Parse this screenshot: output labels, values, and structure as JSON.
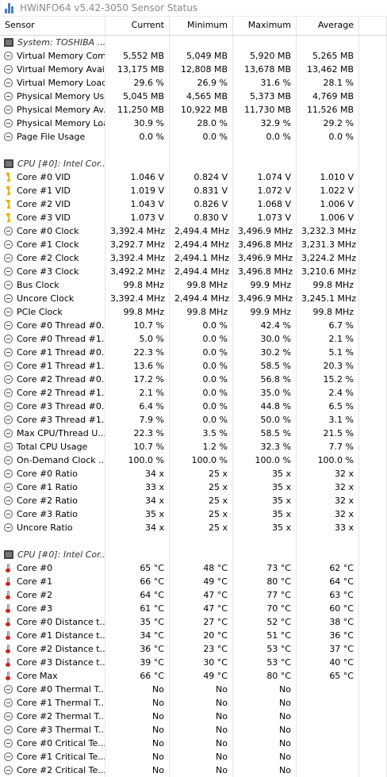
{
  "window": {
    "title": "HWiNFO64 v5.42-3050 Sensor Status"
  },
  "columns": {
    "sensor": "Sensor",
    "current": "Current",
    "minimum": "Minimum",
    "maximum": "Maximum",
    "average": "Average"
  },
  "rows": [
    {
      "type": "group",
      "icon": "chip-icon",
      "label": "System: TOSHIBA ...",
      "cur": "",
      "min": "",
      "max": "",
      "avg": ""
    },
    {
      "type": "sensor",
      "icon": "gauge-icon",
      "label": "Virtual Memory Com...",
      "cur": "5,552 MB",
      "min": "5,049 MB",
      "max": "5,920 MB",
      "avg": "5,265 MB"
    },
    {
      "type": "sensor",
      "icon": "gauge-icon",
      "label": "Virtual Memory Avai...",
      "cur": "13,175 MB",
      "min": "12,808 MB",
      "max": "13,678 MB",
      "avg": "13,462 MB"
    },
    {
      "type": "sensor",
      "icon": "gauge-icon",
      "label": "Virtual Memory Load",
      "cur": "29.6 %",
      "min": "26.9 %",
      "max": "31.6 %",
      "avg": "28.1 %"
    },
    {
      "type": "sensor",
      "icon": "gauge-icon",
      "label": "Physical Memory Used",
      "cur": "5,045 MB",
      "min": "4,565 MB",
      "max": "5,373 MB",
      "avg": "4,769 MB"
    },
    {
      "type": "sensor",
      "icon": "gauge-icon",
      "label": "Physical Memory Av...",
      "cur": "11,250 MB",
      "min": "10,922 MB",
      "max": "11,730 MB",
      "avg": "11,526 MB"
    },
    {
      "type": "sensor",
      "icon": "gauge-icon",
      "label": "Physical Memory Load",
      "cur": "30.9 %",
      "min": "28.0 %",
      "max": "32.9 %",
      "avg": "29.2 %"
    },
    {
      "type": "sensor",
      "icon": "gauge-icon",
      "label": "Page File Usage",
      "cur": "0.0 %",
      "min": "0.0 %",
      "max": "0.0 %",
      "avg": "0.0 %"
    },
    {
      "type": "blank",
      "icon": "",
      "label": "",
      "cur": "",
      "min": "",
      "max": "",
      "avg": ""
    },
    {
      "type": "group",
      "icon": "chip-icon",
      "label": "CPU [#0]: Intel Cor...",
      "cur": "",
      "min": "",
      "max": "",
      "avg": ""
    },
    {
      "type": "sensor",
      "icon": "bolt-icon",
      "label": "Core #0 VID",
      "cur": "1.046 V",
      "min": "0.824 V",
      "max": "1.074 V",
      "avg": "1.010 V"
    },
    {
      "type": "sensor",
      "icon": "bolt-icon",
      "label": "Core #1 VID",
      "cur": "1.019 V",
      "min": "0.831 V",
      "max": "1.072 V",
      "avg": "1.022 V"
    },
    {
      "type": "sensor",
      "icon": "bolt-icon",
      "label": "Core #2 VID",
      "cur": "1.043 V",
      "min": "0.826 V",
      "max": "1.068 V",
      "avg": "1.006 V"
    },
    {
      "type": "sensor",
      "icon": "bolt-icon",
      "label": "Core #3 VID",
      "cur": "1.073 V",
      "min": "0.830 V",
      "max": "1.073 V",
      "avg": "1.006 V"
    },
    {
      "type": "sensor",
      "icon": "gauge-icon",
      "label": "Core #0 Clock",
      "cur": "3,392.4 MHz",
      "min": "2,494.4 MHz",
      "max": "3,496.9 MHz",
      "avg": "3,232.3 MHz"
    },
    {
      "type": "sensor",
      "icon": "gauge-icon",
      "label": "Core #1 Clock",
      "cur": "3,292.7 MHz",
      "min": "2,494.4 MHz",
      "max": "3,496.8 MHz",
      "avg": "3,231.3 MHz"
    },
    {
      "type": "sensor",
      "icon": "gauge-icon",
      "label": "Core #2 Clock",
      "cur": "3,392.4 MHz",
      "min": "2,494.1 MHz",
      "max": "3,496.9 MHz",
      "avg": "3,224.2 MHz"
    },
    {
      "type": "sensor",
      "icon": "gauge-icon",
      "label": "Core #3 Clock",
      "cur": "3,492.2 MHz",
      "min": "2,494.4 MHz",
      "max": "3,496.8 MHz",
      "avg": "3,210.6 MHz"
    },
    {
      "type": "sensor",
      "icon": "gauge-icon",
      "label": "Bus Clock",
      "cur": "99.8 MHz",
      "min": "99.8 MHz",
      "max": "99.9 MHz",
      "avg": "99.8 MHz"
    },
    {
      "type": "sensor",
      "icon": "gauge-icon",
      "label": "Uncore Clock",
      "cur": "3,392.4 MHz",
      "min": "2,494.4 MHz",
      "max": "3,496.9 MHz",
      "avg": "3,245.1 MHz"
    },
    {
      "type": "sensor",
      "icon": "gauge-icon",
      "label": "PCIe Clock",
      "cur": "99.8 MHz",
      "min": "99.8 MHz",
      "max": "99.9 MHz",
      "avg": "99.8 MHz"
    },
    {
      "type": "sensor",
      "icon": "gauge-icon",
      "label": "Core #0 Thread #0...",
      "cur": "10.7 %",
      "min": "0.0 %",
      "max": "42.4 %",
      "avg": "6.7 %"
    },
    {
      "type": "sensor",
      "icon": "gauge-icon",
      "label": "Core #0 Thread #1...",
      "cur": "5.0 %",
      "min": "0.0 %",
      "max": "30.0 %",
      "avg": "2.1 %"
    },
    {
      "type": "sensor",
      "icon": "gauge-icon",
      "label": "Core #1 Thread #0...",
      "cur": "22.3 %",
      "min": "0.0 %",
      "max": "30.2 %",
      "avg": "5.1 %"
    },
    {
      "type": "sensor",
      "icon": "gauge-icon",
      "label": "Core #1 Thread #1...",
      "cur": "13.6 %",
      "min": "0.0 %",
      "max": "58.5 %",
      "avg": "20.3 %"
    },
    {
      "type": "sensor",
      "icon": "gauge-icon",
      "label": "Core #2 Thread #0...",
      "cur": "17.2 %",
      "min": "0.0 %",
      "max": "56.8 %",
      "avg": "15.2 %"
    },
    {
      "type": "sensor",
      "icon": "gauge-icon",
      "label": "Core #2 Thread #1...",
      "cur": "2.1 %",
      "min": "0.0 %",
      "max": "35.0 %",
      "avg": "2.4 %"
    },
    {
      "type": "sensor",
      "icon": "gauge-icon",
      "label": "Core #3 Thread #0...",
      "cur": "6.4 %",
      "min": "0.0 %",
      "max": "44.8 %",
      "avg": "6.5 %"
    },
    {
      "type": "sensor",
      "icon": "gauge-icon",
      "label": "Core #3 Thread #1...",
      "cur": "7.9 %",
      "min": "0.0 %",
      "max": "50.0 %",
      "avg": "3.1 %"
    },
    {
      "type": "sensor",
      "icon": "gauge-icon",
      "label": "Max CPU/Thread U...",
      "cur": "22.3 %",
      "min": "3.5 %",
      "max": "58.5 %",
      "avg": "21.5 %"
    },
    {
      "type": "sensor",
      "icon": "gauge-icon",
      "label": "Total CPU Usage",
      "cur": "10.7 %",
      "min": "1.2 %",
      "max": "32.3 %",
      "avg": "7.7 %"
    },
    {
      "type": "sensor",
      "icon": "gauge-icon",
      "label": "On-Demand Clock ...",
      "cur": "100.0 %",
      "min": "100.0 %",
      "max": "100.0 %",
      "avg": "100.0 %"
    },
    {
      "type": "sensor",
      "icon": "gauge-icon",
      "label": "Core #0 Ratio",
      "cur": "34 x",
      "min": "25 x",
      "max": "35 x",
      "avg": "32 x"
    },
    {
      "type": "sensor",
      "icon": "gauge-icon",
      "label": "Core #1 Ratio",
      "cur": "33 x",
      "min": "25 x",
      "max": "35 x",
      "avg": "32 x"
    },
    {
      "type": "sensor",
      "icon": "gauge-icon",
      "label": "Core #2 Ratio",
      "cur": "34 x",
      "min": "25 x",
      "max": "35 x",
      "avg": "32 x"
    },
    {
      "type": "sensor",
      "icon": "gauge-icon",
      "label": "Core #3 Ratio",
      "cur": "35 x",
      "min": "25 x",
      "max": "35 x",
      "avg": "32 x"
    },
    {
      "type": "sensor",
      "icon": "gauge-icon",
      "label": "Uncore Ratio",
      "cur": "34 x",
      "min": "25 x",
      "max": "35 x",
      "avg": "33 x"
    },
    {
      "type": "blank",
      "icon": "",
      "label": "",
      "cur": "",
      "min": "",
      "max": "",
      "avg": ""
    },
    {
      "type": "group",
      "icon": "chip-icon",
      "label": "CPU [#0]: Intel Cor...",
      "cur": "",
      "min": "",
      "max": "",
      "avg": ""
    },
    {
      "type": "sensor",
      "icon": "thermometer-icon",
      "label": "Core #0",
      "cur": "65 °C",
      "min": "48 °C",
      "max": "73 °C",
      "avg": "62 °C"
    },
    {
      "type": "sensor",
      "icon": "thermometer-icon",
      "label": "Core #1",
      "cur": "66 °C",
      "min": "49 °C",
      "max": "80 °C",
      "avg": "64 °C"
    },
    {
      "type": "sensor",
      "icon": "thermometer-icon",
      "label": "Core #2",
      "cur": "64 °C",
      "min": "47 °C",
      "max": "77 °C",
      "avg": "63 °C"
    },
    {
      "type": "sensor",
      "icon": "thermometer-icon",
      "label": "Core #3",
      "cur": "61 °C",
      "min": "47 °C",
      "max": "70 °C",
      "avg": "60 °C"
    },
    {
      "type": "sensor",
      "icon": "thermometer-icon",
      "label": "Core #0 Distance t...",
      "cur": "35 °C",
      "min": "27 °C",
      "max": "52 °C",
      "avg": "38 °C"
    },
    {
      "type": "sensor",
      "icon": "thermometer-icon",
      "label": "Core #1 Distance t...",
      "cur": "34 °C",
      "min": "20 °C",
      "max": "51 °C",
      "avg": "36 °C"
    },
    {
      "type": "sensor",
      "icon": "thermometer-icon",
      "label": "Core #2 Distance t...",
      "cur": "36 °C",
      "min": "23 °C",
      "max": "53 °C",
      "avg": "37 °C"
    },
    {
      "type": "sensor",
      "icon": "thermometer-icon",
      "label": "Core #3 Distance t...",
      "cur": "39 °C",
      "min": "30 °C",
      "max": "53 °C",
      "avg": "40 °C"
    },
    {
      "type": "sensor",
      "icon": "thermometer-icon",
      "label": "Core Max",
      "cur": "66 °C",
      "min": "49 °C",
      "max": "80 °C",
      "avg": "65 °C"
    },
    {
      "type": "sensor",
      "icon": "gauge-icon",
      "label": "Core #0 Thermal T...",
      "cur": "No",
      "min": "No",
      "max": "No",
      "avg": ""
    },
    {
      "type": "sensor",
      "icon": "gauge-icon",
      "label": "Core #1 Thermal T...",
      "cur": "No",
      "min": "No",
      "max": "No",
      "avg": ""
    },
    {
      "type": "sensor",
      "icon": "gauge-icon",
      "label": "Core #2 Thermal T...",
      "cur": "No",
      "min": "No",
      "max": "No",
      "avg": ""
    },
    {
      "type": "sensor",
      "icon": "gauge-icon",
      "label": "Core #3 Thermal T...",
      "cur": "No",
      "min": "No",
      "max": "No",
      "avg": ""
    },
    {
      "type": "sensor",
      "icon": "gauge-icon",
      "label": "Core #0 Critical Te...",
      "cur": "No",
      "min": "No",
      "max": "No",
      "avg": ""
    },
    {
      "type": "sensor",
      "icon": "gauge-icon",
      "label": "Core #1 Critical Te...",
      "cur": "No",
      "min": "No",
      "max": "No",
      "avg": ""
    },
    {
      "type": "sensor",
      "icon": "gauge-icon",
      "label": "Core #2 Critical Te...",
      "cur": "No",
      "min": "No",
      "max": "No",
      "avg": ""
    }
  ]
}
